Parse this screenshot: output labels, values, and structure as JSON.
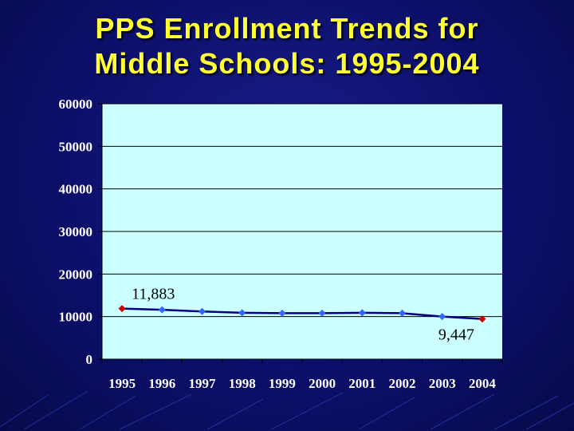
{
  "slide": {
    "title_line1": "PPS Enrollment Trends for",
    "title_line2": "Middle Schools: 1995-2004"
  },
  "chart_data": {
    "type": "line",
    "title": "PPS Enrollment Trends for Middle Schools: 1995-2004",
    "xlabel": "",
    "ylabel": "",
    "categories": [
      "1995",
      "1996",
      "1997",
      "1998",
      "1999",
      "2000",
      "2001",
      "2002",
      "2003",
      "2004"
    ],
    "series": [
      {
        "values": [
          11883,
          11600,
          11200,
          10900,
          10800,
          10800,
          10900,
          10800,
          10000,
          9447
        ]
      }
    ],
    "ylim": [
      0,
      60000
    ],
    "yticks": [
      "0",
      "10000",
      "20000",
      "30000",
      "40000",
      "50000",
      "60000"
    ],
    "annotations": [
      {
        "category": "1995",
        "text": "11,883"
      },
      {
        "category": "2004",
        "text": "9,447"
      }
    ],
    "grid": true,
    "legend": "none",
    "colors": {
      "plot_background": "#ccffff",
      "line": "#000080",
      "marker": "#3366ff",
      "endpoint_marker": "#cc0000",
      "gridline": "#000000",
      "axis_text": "#ffffff",
      "title": "#ffff33"
    }
  }
}
